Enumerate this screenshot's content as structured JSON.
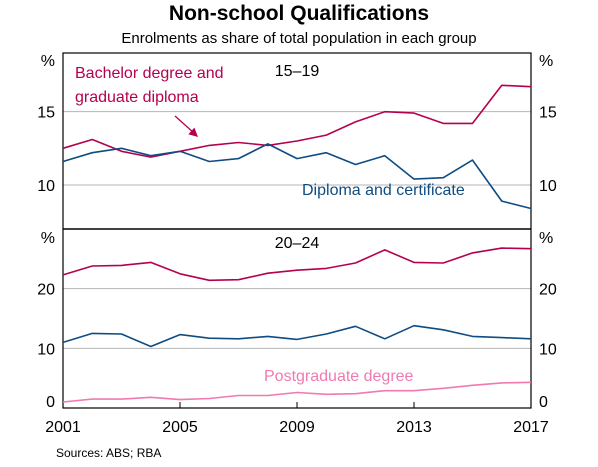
{
  "title": "Non-school Qualifications",
  "subtitle": "Enrolments as share of total population in each group",
  "source": "Sources:  ABS; RBA",
  "colors": {
    "bachelor": "#b5004f",
    "diploma": "#0e4c82",
    "postgraduate": "#f07ab0",
    "grid": "#b4b4b4"
  },
  "chart_data": [
    {
      "type": "line",
      "panel_title": "15–19",
      "x": [
        2001,
        2002,
        2003,
        2004,
        2005,
        2006,
        2007,
        2008,
        2009,
        2010,
        2011,
        2012,
        2013,
        2014,
        2015,
        2016,
        2017
      ],
      "ylim": [
        7,
        19
      ],
      "yticks": [
        10,
        15
      ],
      "unit_label": "%",
      "grid": true,
      "series": [
        {
          "name": "Bachelor degree and graduate diploma",
          "label_lines": [
            "Bachelor degree and",
            "graduate diploma"
          ],
          "color_key": "bachelor",
          "values": [
            12.5,
            13.1,
            12.3,
            11.9,
            12.3,
            12.7,
            12.9,
            12.7,
            13.0,
            13.4,
            14.3,
            15.0,
            14.9,
            14.2,
            14.2,
            16.8,
            16.7
          ]
        },
        {
          "name": "Diploma and certificate",
          "label_lines": [
            "Diploma and certificate"
          ],
          "color_key": "diploma",
          "values": [
            11.6,
            12.2,
            12.5,
            12.0,
            12.3,
            11.6,
            11.8,
            12.8,
            11.8,
            12.2,
            11.4,
            12.0,
            10.4,
            10.5,
            11.7,
            8.9,
            8.4
          ]
        }
      ]
    },
    {
      "type": "line",
      "panel_title": "20–24",
      "x": [
        2001,
        2002,
        2003,
        2004,
        2005,
        2006,
        2007,
        2008,
        2009,
        2010,
        2011,
        2012,
        2013,
        2014,
        2015,
        2016,
        2017
      ],
      "ylim": [
        0,
        30
      ],
      "yticks": [
        0,
        10,
        20
      ],
      "xticks": [
        2001,
        2005,
        2009,
        2013,
        2017
      ],
      "unit_label": "%",
      "grid": true,
      "series": [
        {
          "name": "Bachelor degree and graduate diploma",
          "color_key": "bachelor",
          "values": [
            22.3,
            23.8,
            23.9,
            24.4,
            22.5,
            21.4,
            21.5,
            22.6,
            23.1,
            23.4,
            24.3,
            26.5,
            24.4,
            24.3,
            26.0,
            26.8,
            26.7
          ]
        },
        {
          "name": "Diploma and certificate",
          "color_key": "diploma",
          "values": [
            11.0,
            12.5,
            12.4,
            10.3,
            12.3,
            11.7,
            11.6,
            12.0,
            11.5,
            12.4,
            13.7,
            11.6,
            13.8,
            13.1,
            12.0,
            11.8,
            11.6
          ]
        },
        {
          "name": "Postgraduate degree",
          "label_lines": [
            "Postgraduate degree"
          ],
          "color_key": "postgraduate",
          "values": [
            1.0,
            1.5,
            1.5,
            1.8,
            1.4,
            1.6,
            2.1,
            2.1,
            2.6,
            2.3,
            2.4,
            2.9,
            2.9,
            3.3,
            3.8,
            4.2,
            4.3
          ]
        }
      ]
    }
  ]
}
